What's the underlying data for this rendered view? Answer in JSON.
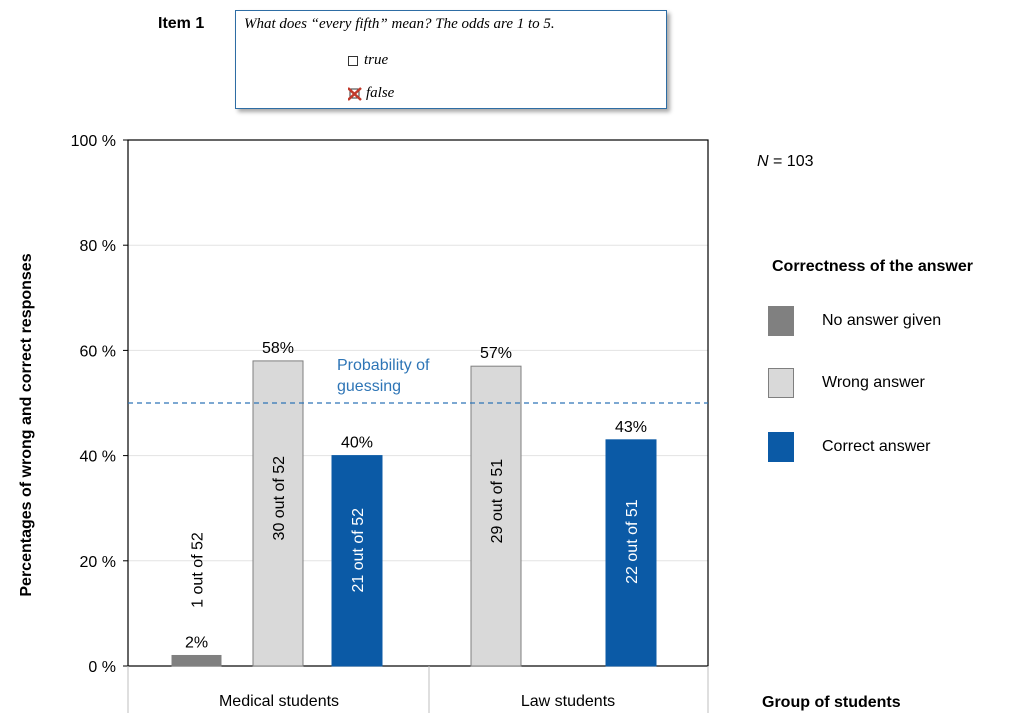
{
  "item": {
    "label": "Item 1",
    "question": "What does “every fifth” mean? The odds are 1 to 5.",
    "options": [
      {
        "label": "true",
        "marked": false,
        "icon": "checkbox-icon"
      },
      {
        "label": "false",
        "marked": true,
        "icon": "red-x-icon"
      }
    ]
  },
  "n_label": {
    "symbol": "N",
    "text": " = 103"
  },
  "legend_title": "Correctness of the answer",
  "group_axis_label": "Group of students",
  "colors": {
    "no_answer": "#808080",
    "wrong": "#d9d9d9",
    "correct": "#0b5aa6",
    "guess_line": "#2e75b6",
    "mark_x": "#c0392b"
  },
  "chart_data": {
    "type": "bar",
    "ylabel": "Percentages of wrong and correct responses",
    "ylim": [
      0,
      100
    ],
    "yticks": [
      0,
      20,
      40,
      60,
      80,
      100
    ],
    "ytick_labels": [
      "0 %",
      "20 %",
      "40 %",
      "60 %",
      "80 %",
      "100 %"
    ],
    "grid": true,
    "legend_position": "right",
    "categories": [
      "Medical students",
      "Law students"
    ],
    "series": [
      {
        "name": "No answer given",
        "color_key": "no_answer",
        "values": [
          2,
          null
        ],
        "data_labels": [
          "2%",
          null
        ],
        "count_labels": [
          "1 out of 52",
          null
        ]
      },
      {
        "name": "Wrong answer",
        "color_key": "wrong",
        "values": [
          58,
          57
        ],
        "data_labels": [
          "58%",
          "57%"
        ],
        "count_labels": [
          "30 out of 52",
          "29 out of 51"
        ]
      },
      {
        "name": "Correct answer",
        "color_key": "correct",
        "values": [
          40,
          43
        ],
        "data_labels": [
          "40%",
          "43%"
        ],
        "count_labels": [
          "21 out of 52",
          "22 out of 51"
        ]
      }
    ],
    "reference_line": {
      "value": 50,
      "label_lines": [
        "Probability of",
        "guessing"
      ]
    }
  }
}
